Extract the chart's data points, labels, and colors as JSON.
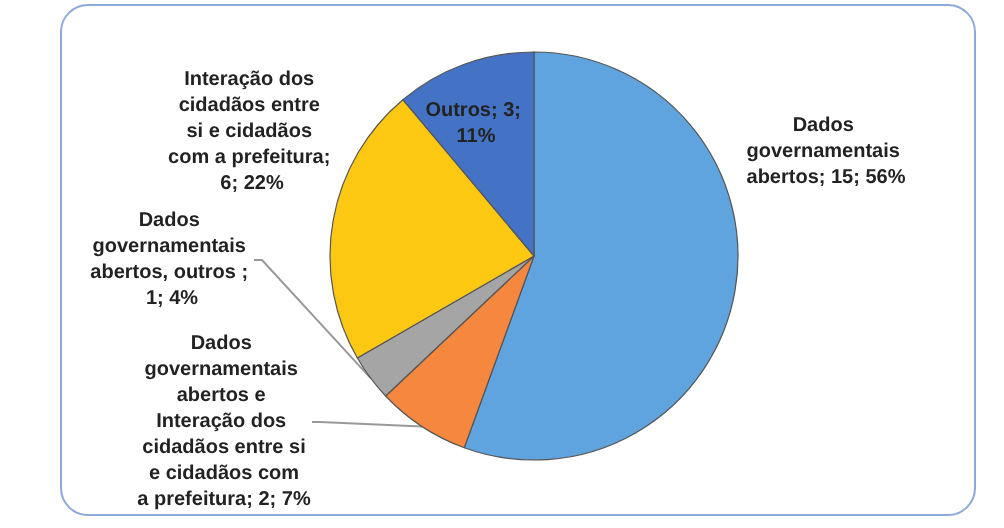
{
  "chart_data": {
    "type": "pie",
    "categories": [
      "Dados governamentais abertos",
      "Dados governamentais abertos e Interação dos cidadãos entre si e cidadãos com a prefeitura",
      "Dados governamentais abertos, outros ",
      "Interação dos cidadãos entre si e cidadãos com a prefeitura",
      "Outros"
    ],
    "values": [
      15,
      2,
      1,
      6,
      3
    ],
    "colors": [
      "#5fa3df",
      "#f5883e",
      "#a5a5a5",
      "#fdc812",
      "#4472c4"
    ],
    "value_labels": [
      "; 15; 56%",
      "; 2; 7%",
      "; 1; 4%",
      "; 6; 22%",
      "; 3; 11%"
    ],
    "legend": false
  }
}
